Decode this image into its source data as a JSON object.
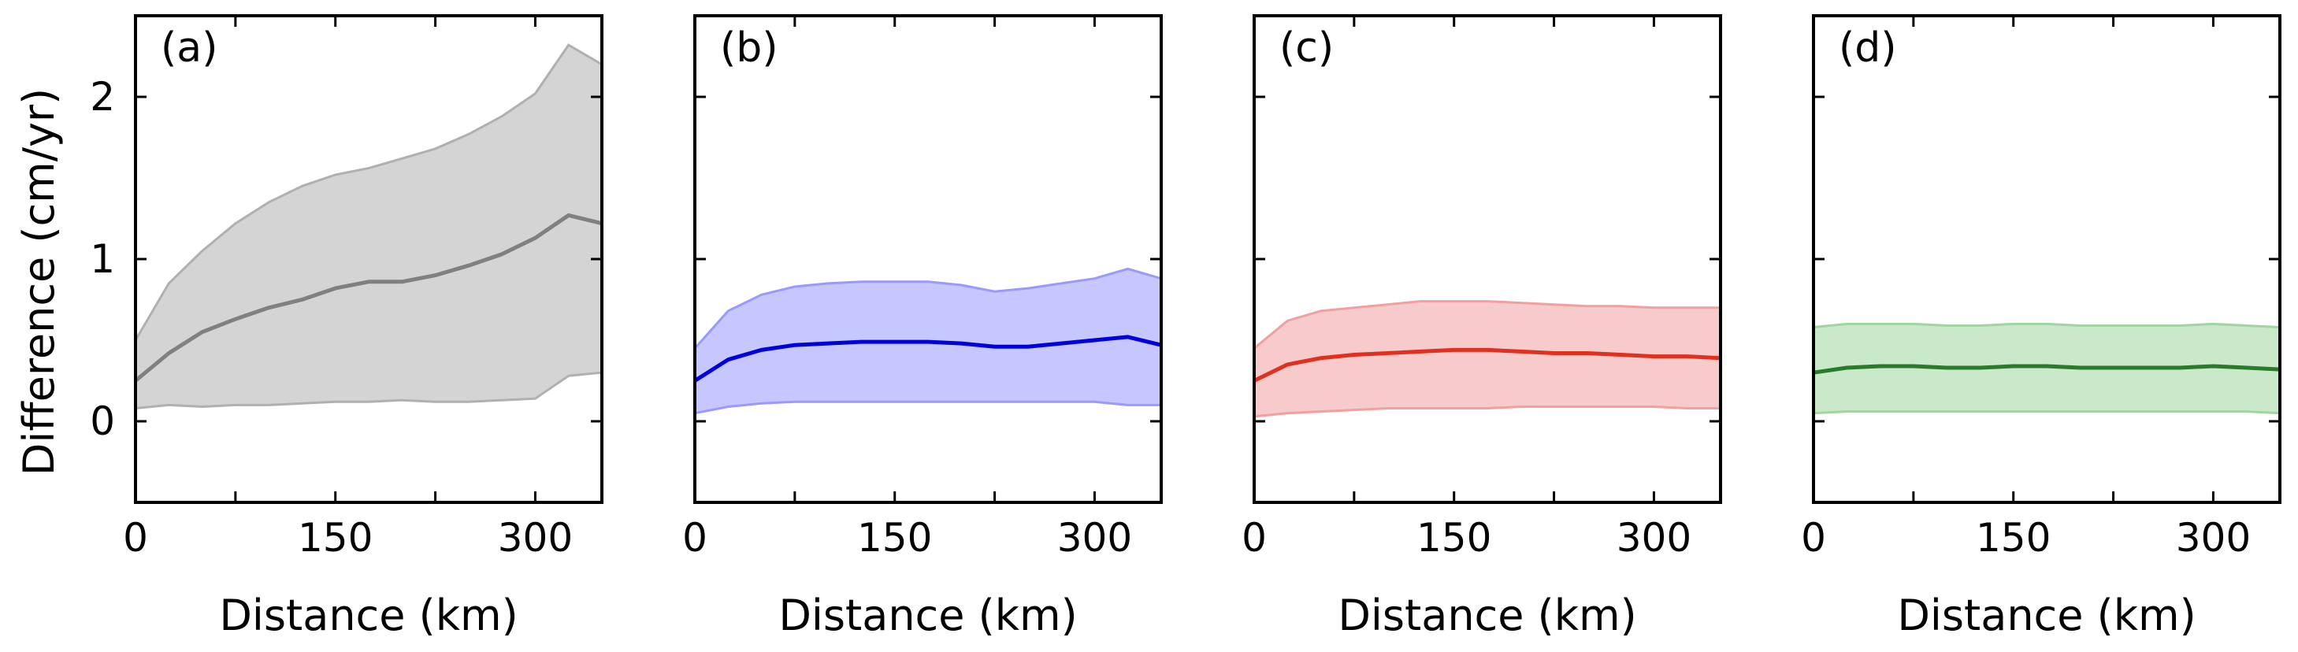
{
  "figure": {
    "ylabel": "Difference (cm/yr)",
    "xlabel": "Distance (km)"
  },
  "chart_data": [
    {
      "type": "area",
      "panel": "(a)",
      "color": "#808080",
      "band_color": "#b0b0b0",
      "xlabel": "Distance (km)",
      "ylabel": "Difference (cm/yr)",
      "xlim": [
        0,
        350
      ],
      "ylim": [
        -0.5,
        2.5
      ],
      "xticks": [
        "0",
        "150",
        "300"
      ],
      "xtick_values": [
        0,
        150,
        300
      ],
      "yticks": [
        "0",
        "1",
        "2"
      ],
      "ytick_values": [
        0,
        1,
        2
      ],
      "x": [
        0,
        25,
        50,
        75,
        100,
        125,
        150,
        175,
        200,
        225,
        250,
        275,
        300,
        325,
        350
      ],
      "mean": [
        0.25,
        0.42,
        0.55,
        0.63,
        0.7,
        0.75,
        0.82,
        0.86,
        0.86,
        0.9,
        0.96,
        1.03,
        1.13,
        1.27,
        1.22
      ],
      "upper": [
        0.5,
        0.85,
        1.05,
        1.22,
        1.35,
        1.45,
        1.52,
        1.56,
        1.62,
        1.68,
        1.77,
        1.88,
        2.02,
        2.32,
        2.2
      ],
      "lower": [
        0.08,
        0.1,
        0.09,
        0.1,
        0.1,
        0.11,
        0.12,
        0.12,
        0.13,
        0.12,
        0.12,
        0.13,
        0.14,
        0.28,
        0.3
      ]
    },
    {
      "type": "area",
      "panel": "(b)",
      "color": "#0000dd",
      "band_color": "#9999ff",
      "xlabel": "Distance (km)",
      "ylabel": "",
      "xlim": [
        0,
        350
      ],
      "ylim": [
        -0.5,
        2.5
      ],
      "xticks": [
        "0",
        "150",
        "300"
      ],
      "xtick_values": [
        0,
        150,
        300
      ],
      "yticks": [],
      "ytick_values": [
        0,
        1,
        2
      ],
      "x": [
        0,
        25,
        50,
        75,
        100,
        125,
        150,
        175,
        200,
        225,
        250,
        275,
        300,
        325,
        350
      ],
      "mean": [
        0.25,
        0.38,
        0.44,
        0.47,
        0.48,
        0.49,
        0.49,
        0.49,
        0.48,
        0.46,
        0.46,
        0.48,
        0.5,
        0.52,
        0.47
      ],
      "upper": [
        0.45,
        0.68,
        0.78,
        0.83,
        0.85,
        0.86,
        0.86,
        0.86,
        0.84,
        0.8,
        0.82,
        0.85,
        0.88,
        0.94,
        0.88
      ],
      "lower": [
        0.05,
        0.09,
        0.11,
        0.12,
        0.12,
        0.12,
        0.12,
        0.12,
        0.12,
        0.12,
        0.12,
        0.12,
        0.12,
        0.1,
        0.1
      ]
    },
    {
      "type": "area",
      "panel": "(c)",
      "color": "#e03020",
      "band_color": "#f0a0a0",
      "xlabel": "Distance (km)",
      "ylabel": "",
      "xlim": [
        0,
        350
      ],
      "ylim": [
        -0.5,
        2.5
      ],
      "xticks": [
        "0",
        "150",
        "300"
      ],
      "xtick_values": [
        0,
        150,
        300
      ],
      "yticks": [],
      "ytick_values": [
        0,
        1,
        2
      ],
      "x": [
        0,
        25,
        50,
        75,
        100,
        125,
        150,
        175,
        200,
        225,
        250,
        275,
        300,
        325,
        350
      ],
      "mean": [
        0.25,
        0.35,
        0.39,
        0.41,
        0.42,
        0.43,
        0.44,
        0.44,
        0.43,
        0.42,
        0.42,
        0.41,
        0.4,
        0.4,
        0.39
      ],
      "upper": [
        0.45,
        0.62,
        0.68,
        0.7,
        0.72,
        0.74,
        0.74,
        0.74,
        0.73,
        0.72,
        0.71,
        0.71,
        0.7,
        0.7,
        0.7
      ],
      "lower": [
        0.03,
        0.05,
        0.06,
        0.07,
        0.08,
        0.08,
        0.08,
        0.08,
        0.09,
        0.09,
        0.09,
        0.09,
        0.09,
        0.08,
        0.08
      ]
    },
    {
      "type": "area",
      "panel": "(d)",
      "color": "#2a7a2a",
      "band_color": "#9fd69f",
      "xlabel": "Distance (km)",
      "ylabel": "",
      "xlim": [
        0,
        350
      ],
      "ylim": [
        -0.5,
        2.5
      ],
      "xticks": [
        "0",
        "150",
        "300"
      ],
      "xtick_values": [
        0,
        150,
        300
      ],
      "yticks": [],
      "ytick_values": [
        0,
        1,
        2
      ],
      "x": [
        0,
        25,
        50,
        75,
        100,
        125,
        150,
        175,
        200,
        225,
        250,
        275,
        300,
        325,
        350
      ],
      "mean": [
        0.3,
        0.33,
        0.34,
        0.34,
        0.33,
        0.33,
        0.34,
        0.34,
        0.33,
        0.33,
        0.33,
        0.33,
        0.34,
        0.33,
        0.32
      ],
      "upper": [
        0.58,
        0.6,
        0.6,
        0.6,
        0.59,
        0.59,
        0.6,
        0.6,
        0.59,
        0.59,
        0.59,
        0.59,
        0.6,
        0.59,
        0.58
      ],
      "lower": [
        0.05,
        0.06,
        0.06,
        0.06,
        0.06,
        0.06,
        0.06,
        0.06,
        0.06,
        0.06,
        0.06,
        0.06,
        0.06,
        0.06,
        0.05
      ]
    }
  ]
}
